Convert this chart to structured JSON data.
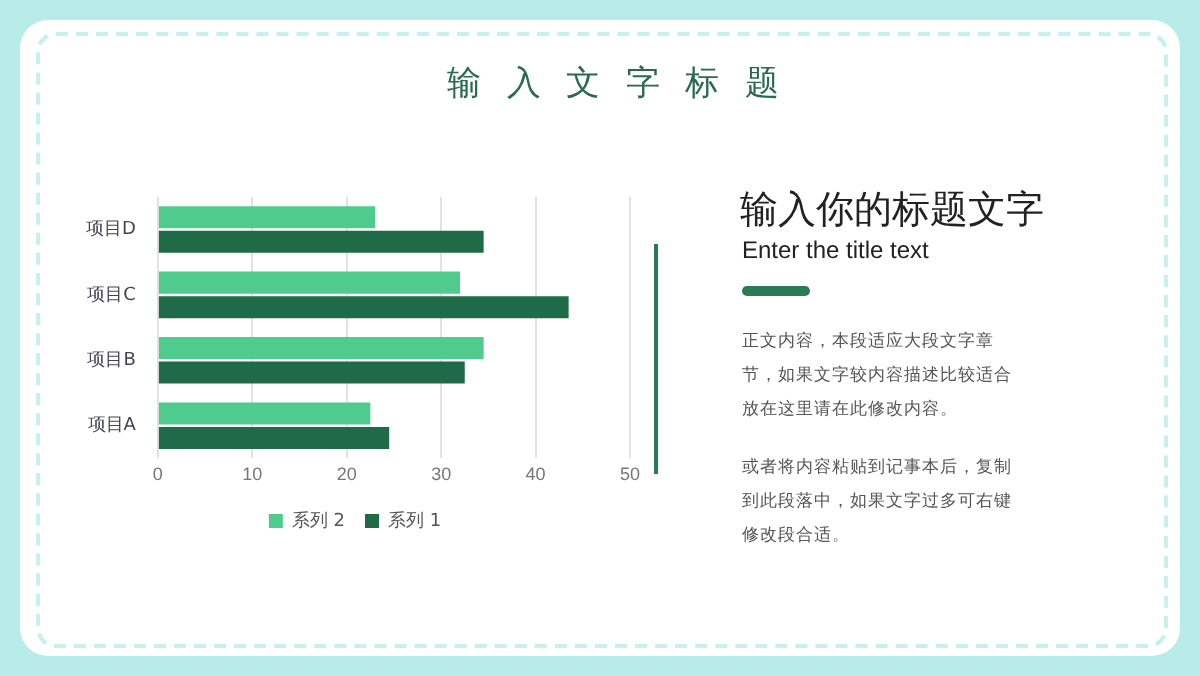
{
  "chart_data": {
    "type": "bar",
    "orientation": "horizontal",
    "title": "输入文字标题",
    "subtitle": "输入你的标题文字",
    "categories": [
      "项目D",
      "项目C",
      "项目B",
      "项目A"
    ],
    "series": [
      {
        "name": "系列 2",
        "color": "#4fcb8e",
        "values": [
          23,
          32,
          34.5,
          22.5
        ]
      },
      {
        "name": "系列 1",
        "color": "#1f6b48",
        "values": [
          34.5,
          43.5,
          32.5,
          24.5
        ]
      }
    ],
    "xlim": [
      0,
      50
    ],
    "xticks": [
      0,
      10,
      20,
      30,
      40,
      50
    ],
    "grid": "x",
    "legend": "bottom",
    "annotations": [
      "Enter the title text",
      "正文内容，本段适应大段文字章节，如果文字较内容描述比较适合放在这里请在此修改内容。",
      "或者将内容粘贴到记事本后，复制到此段落中，如果文字过多可右键修改段合适。"
    ]
  }
}
